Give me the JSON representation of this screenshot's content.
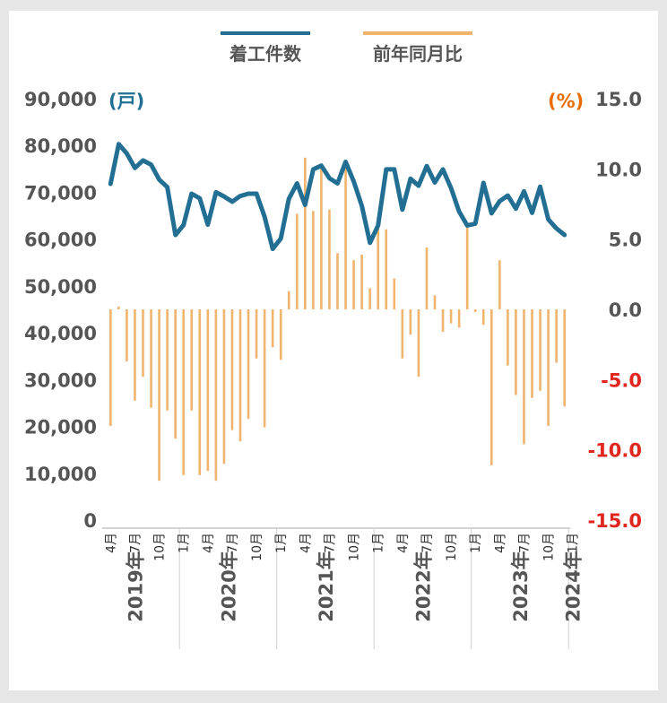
{
  "chart_data": {
    "type": "bar+line",
    "legend": [
      "着工件数",
      "前年同月比"
    ],
    "left_axis": {
      "unit": "(戸)",
      "ticks": [
        "90,000",
        "80,000",
        "70,000",
        "60,000",
        "50,000",
        "40,000",
        "30,000",
        "20,000",
        "10,000",
        "0"
      ],
      "ylim": [
        0,
        90000
      ]
    },
    "right_axis": {
      "unit": "(%)",
      "ticks": [
        "15.0",
        "10.0",
        "5.0",
        "0.0",
        "-5.0",
        "-10.0",
        "-15.0"
      ],
      "ylim": [
        -15,
        15
      ]
    },
    "x_month_labels": [
      {
        "i": 0,
        "t": "4月"
      },
      {
        "i": 3,
        "t": "7月"
      },
      {
        "i": 6,
        "t": "10月"
      },
      {
        "i": 9,
        "t": "1月"
      },
      {
        "i": 12,
        "t": "4月"
      },
      {
        "i": 15,
        "t": "7月"
      },
      {
        "i": 18,
        "t": "10月"
      },
      {
        "i": 21,
        "t": "1月"
      },
      {
        "i": 24,
        "t": "4月"
      },
      {
        "i": 27,
        "t": "7月"
      },
      {
        "i": 30,
        "t": "10月"
      },
      {
        "i": 33,
        "t": "1月"
      },
      {
        "i": 36,
        "t": "4月"
      },
      {
        "i": 39,
        "t": "7月"
      },
      {
        "i": 42,
        "t": "10月"
      },
      {
        "i": 45,
        "t": "1月"
      },
      {
        "i": 48,
        "t": "4月"
      },
      {
        "i": 51,
        "t": "7月"
      },
      {
        "i": 54,
        "t": "10月"
      },
      {
        "i": 57,
        "t": "1月"
      }
    ],
    "years": [
      {
        "label": "2019年",
        "center": 3
      },
      {
        "label": "2020年",
        "center": 14.5
      },
      {
        "label": "2021年",
        "center": 26.5
      },
      {
        "label": "2022年",
        "center": 38.5
      },
      {
        "label": "2023年",
        "center": 50.5
      },
      {
        "label": "2024年",
        "center": 57
      }
    ],
    "year_separators": [
      8.5,
      20.5,
      32.5,
      44.5,
      56.5
    ],
    "series": [
      {
        "name": "着工件数",
        "axis": "left",
        "color": "#236f94",
        "values": [
          71800,
          80300,
          78300,
          75200,
          76800,
          75900,
          72700,
          71100,
          60900,
          63000,
          69700,
          68700,
          63100,
          70000,
          69100,
          68000,
          69200,
          69700,
          69700,
          64800,
          57900,
          60100,
          68600,
          71900,
          67300,
          74900,
          75700,
          73000,
          71900,
          76500,
          72300,
          67100,
          59200,
          62900,
          74900,
          74900,
          66300,
          72900,
          71400,
          75600,
          72100,
          74900,
          70900,
          65900,
          62900,
          63300,
          72000,
          65500,
          68100,
          69300,
          66500,
          70200,
          65600,
          71200,
          64200,
          62300,
          60900
        ]
      },
      {
        "name": "前年同月比",
        "axis": "right",
        "color": "#f0b46e",
        "values": [
          -8.3,
          0.2,
          -3.7,
          -6.5,
          -4.8,
          -7.0,
          -12.2,
          -7.2,
          -9.2,
          -11.8,
          -7.2,
          -11.8,
          -11.5,
          -12.2,
          -11.0,
          -8.6,
          -9.4,
          -7.8,
          -3.5,
          -8.4,
          -2.7,
          -3.6,
          1.3,
          6.8,
          10.8,
          7.0,
          10.3,
          7.1,
          4.0,
          10.6,
          3.5,
          3.9,
          1.5,
          6.1,
          5.7,
          2.2,
          -3.5,
          -1.8,
          -4.8,
          4.4,
          1.0,
          -1.6,
          -1.0,
          -1.3,
          6.2,
          -0.2,
          -1.1,
          -11.1,
          3.5,
          -4.0,
          -6.1,
          -9.6,
          -6.3,
          -5.8,
          -8.3,
          -3.8,
          -6.9
        ]
      }
    ]
  }
}
